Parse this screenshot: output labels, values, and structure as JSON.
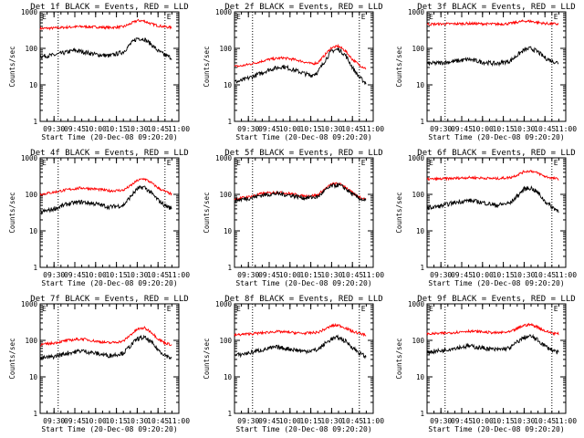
{
  "figure": {
    "background": "#ffffff",
    "frame_color": "#000000"
  },
  "chart_data": [
    {
      "type": "line",
      "title": "Det 1f BLACK = Events, RED = LLD",
      "xlabel": "Start Time (20-Dec-08 09:20:20)",
      "ylabel": "Counts/sec",
      "yscale": "log",
      "ylim": [
        1,
        1000
      ],
      "yticks": [
        "1",
        "10",
        "100",
        "1000"
      ],
      "xlim": [
        "09:20",
        "11:00"
      ],
      "xticks": [
        "09:30",
        "09:45",
        "10:00",
        "10:15",
        "10:30",
        "10:45",
        "11:00"
      ],
      "vlines": [
        "09:33",
        "10:50"
      ],
      "markers": [
        "E",
        "E"
      ],
      "grid": false,
      "legend": "none",
      "series": [
        {
          "color": "#ff0000",
          "x": [
            "09:20",
            "09:30",
            "09:40",
            "09:45",
            "09:50",
            "10:00",
            "10:10",
            "10:20",
            "10:25",
            "10:30",
            "10:35",
            "10:40",
            "10:45",
            "10:50",
            "10:55"
          ],
          "values": [
            350,
            360,
            380,
            390,
            395,
            385,
            370,
            390,
            470,
            580,
            560,
            470,
            420,
            390,
            370
          ]
        },
        {
          "color": "#000000",
          "x": [
            "09:20",
            "09:30",
            "09:40",
            "09:45",
            "09:50",
            "10:00",
            "10:10",
            "10:20",
            "10:25",
            "10:30",
            "10:35",
            "10:40",
            "10:45",
            "10:50",
            "10:55"
          ],
          "values": [
            60,
            65,
            80,
            88,
            82,
            68,
            62,
            80,
            130,
            190,
            180,
            130,
            85,
            65,
            55
          ]
        }
      ]
    },
    {
      "type": "line",
      "title": "Det 2f BLACK = Events, RED = LLD",
      "xlabel": "Start Time (20-Dec-08 09:20:20)",
      "ylabel": "Counts/sec",
      "yscale": "log",
      "ylim": [
        1,
        1000
      ],
      "yticks": [
        "1",
        "10",
        "100",
        "1000"
      ],
      "xlim": [
        "09:20",
        "11:00"
      ],
      "xticks": [
        "09:30",
        "09:45",
        "10:00",
        "10:15",
        "10:30",
        "10:45",
        "11:00"
      ],
      "vlines": [
        "09:33",
        "10:50"
      ],
      "markers": [
        "E",
        "E"
      ],
      "grid": false,
      "legend": "none",
      "series": [
        {
          "color": "#ff0000",
          "x": [
            "09:20",
            "09:25",
            "09:35",
            "09:45",
            "09:55",
            "10:05",
            "10:15",
            "10:20",
            "10:25",
            "10:30",
            "10:35",
            "10:40",
            "10:45",
            "10:50",
            "10:55"
          ],
          "values": [
            32,
            33,
            40,
            50,
            55,
            48,
            38,
            40,
            65,
            105,
            115,
            85,
            50,
            35,
            28
          ]
        },
        {
          "color": "#000000",
          "x": [
            "09:20",
            "09:25",
            "09:35",
            "09:45",
            "09:55",
            "10:05",
            "10:15",
            "10:20",
            "10:25",
            "10:30",
            "10:35",
            "10:40",
            "10:45",
            "10:50",
            "10:55"
          ],
          "values": [
            12,
            13,
            18,
            26,
            32,
            24,
            18,
            22,
            45,
            85,
            95,
            65,
            30,
            16,
            11
          ]
        }
      ]
    },
    {
      "type": "line",
      "title": "Det 3f BLACK = Events, RED = LLD",
      "xlabel": "Start Time (20-Dec-08 09:20:20)",
      "ylabel": "Counts/sec",
      "yscale": "log",
      "ylim": [
        1,
        1000
      ],
      "yticks": [
        "1",
        "10",
        "100",
        "1000"
      ],
      "xlim": [
        "09:20",
        "11:00"
      ],
      "xticks": [
        "09:30",
        "09:45",
        "10:00",
        "10:15",
        "10:30",
        "10:45",
        "11:00"
      ],
      "vlines": [
        "09:33",
        "10:50"
      ],
      "markers": [
        "E",
        "E"
      ],
      "grid": false,
      "legend": "none",
      "series": [
        {
          "color": "#ff0000",
          "x": [
            "09:20",
            "09:30",
            "09:40",
            "09:50",
            "10:00",
            "10:10",
            "10:20",
            "10:25",
            "10:30",
            "10:35",
            "10:40",
            "10:45",
            "10:50",
            "10:55"
          ],
          "values": [
            460,
            465,
            470,
            480,
            470,
            460,
            480,
            520,
            560,
            550,
            510,
            480,
            470,
            460
          ]
        },
        {
          "color": "#000000",
          "x": [
            "09:20",
            "09:30",
            "09:40",
            "09:50",
            "10:00",
            "10:10",
            "10:20",
            "10:25",
            "10:30",
            "10:35",
            "10:40",
            "10:45",
            "10:50",
            "10:55"
          ],
          "values": [
            38,
            40,
            44,
            50,
            42,
            38,
            45,
            65,
            90,
            100,
            80,
            55,
            45,
            40
          ]
        }
      ]
    },
    {
      "type": "line",
      "title": "Det 4f BLACK = Events, RED = LLD",
      "xlabel": "Start Time (20-Dec-08 09:20:20)",
      "ylabel": "Counts/sec",
      "yscale": "log",
      "ylim": [
        1,
        1000
      ],
      "yticks": [
        "1",
        "10",
        "100",
        "1000"
      ],
      "xlim": [
        "09:20",
        "11:00"
      ],
      "xticks": [
        "09:30",
        "09:45",
        "10:00",
        "10:15",
        "10:30",
        "10:45",
        "11:00"
      ],
      "vlines": [
        "09:33",
        "10:50"
      ],
      "markers": [
        "E",
        "E"
      ],
      "grid": false,
      "legend": "none",
      "series": [
        {
          "color": "#ff0000",
          "x": [
            "09:20",
            "09:30",
            "09:40",
            "09:50",
            "10:00",
            "10:10",
            "10:20",
            "10:25",
            "10:30",
            "10:35",
            "10:40",
            "10:45",
            "10:50",
            "10:55"
          ],
          "values": [
            100,
            115,
            135,
            150,
            140,
            125,
            130,
            170,
            240,
            270,
            210,
            150,
            120,
            100
          ]
        },
        {
          "color": "#000000",
          "x": [
            "09:20",
            "09:30",
            "09:40",
            "09:50",
            "10:00",
            "10:10",
            "10:20",
            "10:25",
            "10:30",
            "10:35",
            "10:40",
            "10:45",
            "10:50",
            "10:55"
          ],
          "values": [
            32,
            40,
            55,
            62,
            55,
            45,
            50,
            85,
            140,
            160,
            110,
            70,
            50,
            40
          ]
        }
      ]
    },
    {
      "type": "line",
      "title": "Det 5f BLACK = Events, RED = LLD",
      "xlabel": "Start Time (20-Dec-08 09:20:20)",
      "ylabel": "Counts/sec",
      "yscale": "log",
      "ylim": [
        1,
        1000
      ],
      "yticks": [
        "1",
        "10",
        "100",
        "1000"
      ],
      "xlim": [
        "09:20",
        "11:00"
      ],
      "xticks": [
        "09:30",
        "09:45",
        "10:00",
        "10:15",
        "10:30",
        "10:45",
        "11:00"
      ],
      "vlines": [
        "09:33",
        "10:50"
      ],
      "markers": [
        "E",
        "E"
      ],
      "grid": false,
      "legend": "none",
      "series": [
        {
          "color": "#ff0000",
          "x": [
            "09:20",
            "09:30",
            "09:40",
            "09:50",
            "10:00",
            "10:10",
            "10:20",
            "10:25",
            "10:30",
            "10:35",
            "10:40",
            "10:45",
            "10:50",
            "10:55"
          ],
          "values": [
            75,
            85,
            105,
            115,
            105,
            90,
            95,
            140,
            190,
            200,
            160,
            110,
            85,
            72
          ]
        },
        {
          "color": "#000000",
          "x": [
            "09:20",
            "09:30",
            "09:40",
            "09:50",
            "10:00",
            "10:10",
            "10:20",
            "10:25",
            "10:30",
            "10:35",
            "10:40",
            "10:45",
            "10:50",
            "10:55"
          ],
          "values": [
            68,
            78,
            95,
            105,
            95,
            80,
            85,
            125,
            170,
            180,
            145,
            100,
            78,
            65
          ]
        }
      ]
    },
    {
      "type": "line",
      "title": "Det 6f BLACK = Events, RED = LLD",
      "xlabel": "Start Time (20-Dec-08 09:20:20)",
      "ylabel": "Counts/sec",
      "yscale": "log",
      "ylim": [
        1,
        1000
      ],
      "yticks": [
        "1",
        "10",
        "100",
        "1000"
      ],
      "xlim": [
        "09:20",
        "11:00"
      ],
      "xticks": [
        "09:30",
        "09:45",
        "10:00",
        "10:15",
        "10:30",
        "10:45",
        "11:00"
      ],
      "vlines": [
        "09:33",
        "10:50"
      ],
      "markers": [
        "E",
        "E"
      ],
      "grid": false,
      "legend": "none",
      "series": [
        {
          "color": "#ff0000",
          "x": [
            "09:20",
            "09:30",
            "09:40",
            "09:50",
            "10:00",
            "10:10",
            "10:20",
            "10:25",
            "10:30",
            "10:35",
            "10:40",
            "10:45",
            "10:50",
            "10:55"
          ],
          "values": [
            260,
            265,
            275,
            290,
            280,
            270,
            290,
            340,
            420,
            440,
            380,
            310,
            280,
            260
          ]
        },
        {
          "color": "#000000",
          "x": [
            "09:20",
            "09:30",
            "09:40",
            "09:50",
            "10:00",
            "10:10",
            "10:20",
            "10:25",
            "10:30",
            "10:35",
            "10:40",
            "10:45",
            "10:50",
            "10:55"
          ],
          "values": [
            42,
            48,
            60,
            68,
            60,
            50,
            58,
            90,
            140,
            150,
            110,
            65,
            45,
            35
          ]
        }
      ]
    },
    {
      "type": "line",
      "title": "Det 7f BLACK = Events, RED = LLD",
      "xlabel": "Start Time (20-Dec-08 09:20:20)",
      "ylabel": "Counts/sec",
      "yscale": "log",
      "ylim": [
        1,
        1000
      ],
      "yticks": [
        "1",
        "10",
        "100",
        "1000"
      ],
      "xlim": [
        "09:20",
        "11:00"
      ],
      "xticks": [
        "09:30",
        "09:45",
        "10:00",
        "10:15",
        "10:30",
        "10:45",
        "11:00"
      ],
      "vlines": [
        "09:33",
        "10:50"
      ],
      "markers": [
        "E",
        "E"
      ],
      "grid": false,
      "legend": "none",
      "series": [
        {
          "color": "#ff0000",
          "x": [
            "09:20",
            "09:30",
            "09:40",
            "09:50",
            "10:00",
            "10:10",
            "10:20",
            "10:25",
            "10:30",
            "10:35",
            "10:40",
            "10:45",
            "10:50",
            "10:55"
          ],
          "values": [
            75,
            85,
            100,
            110,
            95,
            85,
            95,
            140,
            200,
            220,
            170,
            110,
            85,
            75
          ]
        },
        {
          "color": "#000000",
          "x": [
            "09:20",
            "09:30",
            "09:40",
            "09:50",
            "10:00",
            "10:10",
            "10:20",
            "10:25",
            "10:30",
            "10:35",
            "10:40",
            "10:45",
            "10:50",
            "10:55"
          ],
          "values": [
            32,
            36,
            45,
            52,
            44,
            38,
            45,
            70,
            110,
            120,
            90,
            55,
            40,
            32
          ]
        }
      ]
    },
    {
      "type": "line",
      "title": "Det 8f BLACK = Events, RED = LLD",
      "xlabel": "Start Time (20-Dec-08 09:20:20)",
      "ylabel": "Counts/sec",
      "yscale": "log",
      "ylim": [
        1,
        1000
      ],
      "yticks": [
        "1",
        "10",
        "100",
        "1000"
      ],
      "xlim": [
        "09:20",
        "11:00"
      ],
      "xticks": [
        "09:30",
        "09:45",
        "10:00",
        "10:15",
        "10:30",
        "10:45",
        "11:00"
      ],
      "vlines": [
        "09:33",
        "10:50"
      ],
      "markers": [
        "E",
        "E"
      ],
      "grid": false,
      "legend": "none",
      "series": [
        {
          "color": "#ff0000",
          "x": [
            "09:20",
            "09:30",
            "09:40",
            "09:50",
            "10:00",
            "10:10",
            "10:20",
            "10:25",
            "10:30",
            "10:35",
            "10:40",
            "10:45",
            "10:50",
            "10:55"
          ],
          "values": [
            140,
            150,
            160,
            175,
            165,
            155,
            165,
            200,
            250,
            260,
            220,
            175,
            155,
            140
          ]
        },
        {
          "color": "#000000",
          "x": [
            "09:20",
            "09:30",
            "09:40",
            "09:50",
            "10:00",
            "10:10",
            "10:20",
            "10:25",
            "10:30",
            "10:35",
            "10:40",
            "10:45",
            "10:50",
            "10:55"
          ],
          "values": [
            38,
            45,
            55,
            65,
            58,
            50,
            55,
            80,
            110,
            120,
            95,
            65,
            45,
            35
          ]
        }
      ]
    },
    {
      "type": "line",
      "title": "Det 9f BLACK = Events, RED = LLD",
      "xlabel": "Start Time (20-Dec-08 09:20:20)",
      "ylabel": "Counts/sec",
      "yscale": "log",
      "ylim": [
        1,
        1000
      ],
      "yticks": [
        "1",
        "10",
        "100",
        "1000"
      ],
      "xlim": [
        "09:20",
        "11:00"
      ],
      "xticks": [
        "09:30",
        "09:45",
        "10:00",
        "10:15",
        "10:30",
        "10:45",
        "11:00"
      ],
      "vlines": [
        "09:33",
        "10:50"
      ],
      "markers": [
        "E",
        "E"
      ],
      "grid": false,
      "legend": "none",
      "series": [
        {
          "color": "#ff0000",
          "x": [
            "09:20",
            "09:30",
            "09:40",
            "09:50",
            "10:00",
            "10:10",
            "10:20",
            "10:25",
            "10:30",
            "10:35",
            "10:40",
            "10:45",
            "10:50",
            "10:55"
          ],
          "values": [
            150,
            155,
            165,
            180,
            170,
            160,
            170,
            210,
            260,
            270,
            230,
            180,
            160,
            150
          ]
        },
        {
          "color": "#000000",
          "x": [
            "09:20",
            "09:30",
            "09:40",
            "09:50",
            "10:00",
            "10:10",
            "10:20",
            "10:25",
            "10:30",
            "10:35",
            "10:40",
            "10:45",
            "10:50",
            "10:55"
          ],
          "values": [
            48,
            52,
            62,
            70,
            62,
            55,
            62,
            90,
            120,
            130,
            100,
            70,
            55,
            45
          ]
        }
      ]
    }
  ]
}
